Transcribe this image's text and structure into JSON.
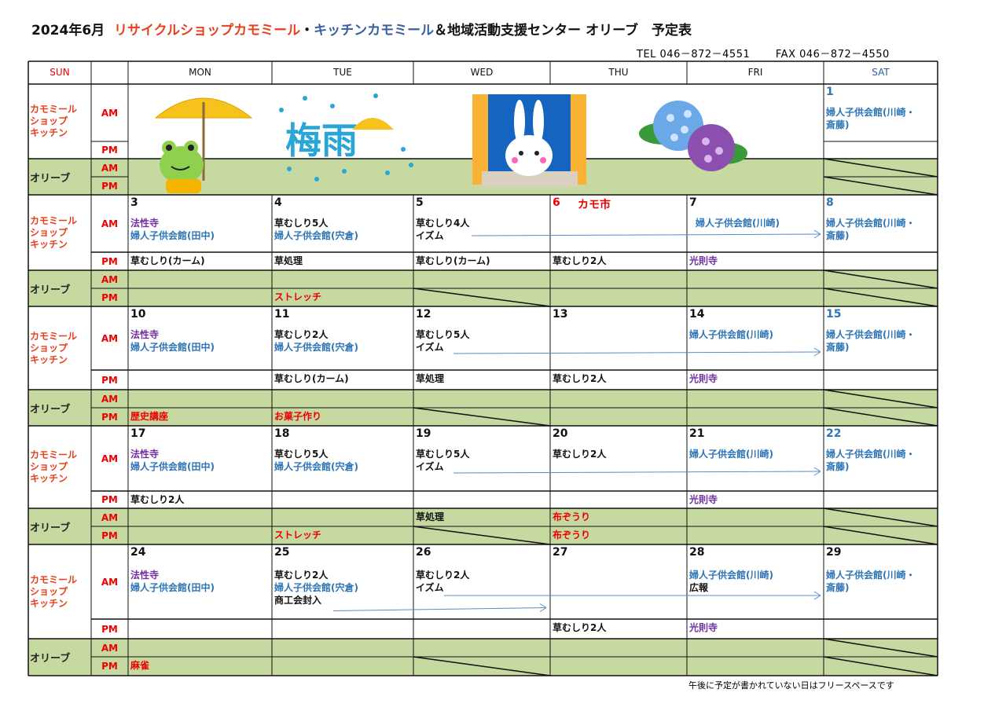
{
  "title": {
    "prefix": "2024年6月",
    "shop1": "リサイクルショップカモミール",
    "dot": "・",
    "shop2": "キッチンカモミール",
    "rest": "＆地域活動支援センター オリーブ　予定表"
  },
  "contact": {
    "tel": "TEL 046－872－4551",
    "fax": "FAX 046－872－4550"
  },
  "header": {
    "days": [
      "SUN",
      "MON",
      "TUE",
      "WED",
      "THU",
      "FRI",
      "SAT"
    ]
  },
  "row_labels": {
    "kamomile": "カモミール\nショップ\nキッチン",
    "olive": "オリーブ",
    "am": "AM",
    "pm": "PM"
  },
  "colors": {
    "black": "#111111",
    "blue": "#2e75b6",
    "purple": "#7030a0",
    "red": "#ee0000",
    "olive_bg": "#c6d9a0",
    "title_orange": "#e8401c",
    "title_blue": "#3a5f9e"
  },
  "illustrations": {
    "frog_umbrella": "frog-umbrella-icon",
    "tsuyu_text": "梅雨",
    "rabbit_window": "rabbit-icon",
    "hydrangea": "hydrangea-icon"
  },
  "weeks": [
    {
      "illustration": true,
      "days": [
        null,
        null,
        null,
        null,
        null,
        {
          "date": "1",
          "date_color": "blue",
          "am": [
            {
              "t": "婦人子供会館(川崎・",
              "c": "blue"
            },
            {
              "t": "斎藤)",
              "c": "blue"
            }
          ],
          "pm": [],
          "olive_am_closed": true,
          "olive_pm_closed": true
        }
      ]
    },
    {
      "arrows": [
        {
          "from_day": "WED",
          "to_day": "SAT"
        }
      ],
      "days": [
        {
          "date": "3",
          "date_color": "black",
          "am": [
            {
              "t": "法性寺",
              "c": "purple"
            },
            {
              "t": "婦人子供会館(田中)",
              "c": "blue"
            }
          ],
          "pm": [
            {
              "t": "草むしり(カーム)",
              "c": "black"
            }
          ]
        },
        {
          "date": "4",
          "date_color": "black",
          "am": [
            {
              "t": "草むしり5人",
              "c": "black"
            },
            {
              "t": "婦人子供会館(宍倉)",
              "c": "blue"
            }
          ],
          "pm": [
            {
              "t": "草処理",
              "c": "black"
            }
          ],
          "olive_pm": {
            "t": "ストレッチ",
            "c": "red"
          }
        },
        {
          "date": "5",
          "date_color": "black",
          "am": [
            {
              "t": "草むしり4人",
              "c": "black"
            },
            {
              "t": "イズム",
              "c": "black"
            }
          ],
          "pm": [
            {
              "t": "草むしり(カーム)",
              "c": "black"
            }
          ],
          "olive_pm_closed": true
        },
        {
          "date": "6",
          "date_color": "red",
          "event": "カモ市",
          "am": [],
          "pm": [
            {
              "t": "草むしり2人",
              "c": "black"
            }
          ]
        },
        {
          "date": "7",
          "date_color": "black",
          "am": [
            {
              "t": " 婦人子供会館(川崎)",
              "c": "blue"
            }
          ],
          "pm": [
            {
              "t": "光則寺",
              "c": "purple"
            }
          ]
        },
        {
          "date": "8",
          "date_color": "blue",
          "am": [
            {
              "t": "婦人子供会館(川崎・",
              "c": "blue"
            },
            {
              "t": "斎藤)",
              "c": "blue"
            }
          ],
          "pm": [],
          "olive_am_closed": true,
          "olive_pm_closed": true
        }
      ]
    },
    {
      "arrows": [
        {
          "from_day": "WED",
          "to_day": "SAT"
        }
      ],
      "days": [
        {
          "date": "10",
          "date_color": "black",
          "am": [
            {
              "t": "法性寺",
              "c": "purple"
            },
            {
              "t": "婦人子供会館(田中)",
              "c": "blue"
            }
          ],
          "pm": [],
          "olive_pm": {
            "t": "歴史講座",
            "c": "red"
          }
        },
        {
          "date": "11",
          "date_color": "black",
          "am": [
            {
              "t": "草むしり2人",
              "c": "black"
            },
            {
              "t": "婦人子供会館(宍倉)",
              "c": "blue"
            }
          ],
          "pm": [
            {
              "t": "草むしり(カーム)",
              "c": "black"
            }
          ],
          "olive_pm": {
            "t": "お菓子作り",
            "c": "red"
          }
        },
        {
          "date": "12",
          "date_color": "black",
          "am": [
            {
              "t": "草むしり5人",
              "c": "black"
            },
            {
              "t": "イズム",
              "c": "black"
            }
          ],
          "pm": [
            {
              "t": "草処理",
              "c": "black"
            }
          ],
          "olive_pm_closed": true
        },
        {
          "date": "13",
          "date_color": "black",
          "am": [],
          "pm": [
            {
              "t": "草むしり2人",
              "c": "black"
            }
          ]
        },
        {
          "date": "14",
          "date_color": "black",
          "am": [
            {
              "t": "婦人子供会館(川崎)",
              "c": "blue"
            }
          ],
          "pm": [
            {
              "t": "光則寺",
              "c": "purple"
            }
          ]
        },
        {
          "date": "15",
          "date_color": "blue",
          "am": [
            {
              "t": "婦人子供会館(川崎・",
              "c": "blue"
            },
            {
              "t": "斎藤)",
              "c": "blue"
            }
          ],
          "pm": [],
          "olive_am_closed": true,
          "olive_pm_closed": true
        }
      ]
    },
    {
      "arrows": [
        {
          "from_day": "WED",
          "to_day": "SAT"
        }
      ],
      "days": [
        {
          "date": "17",
          "date_color": "black",
          "am": [
            {
              "t": "法性寺",
              "c": "purple"
            },
            {
              "t": "婦人子供会館(田中)",
              "c": "blue"
            }
          ],
          "pm": [
            {
              "t": "草むしり2人",
              "c": "black"
            }
          ]
        },
        {
          "date": "18",
          "date_color": "black",
          "am": [
            {
              "t": "草むしり5人",
              "c": "black"
            },
            {
              "t": "婦人子供会館(宍倉)",
              "c": "blue"
            }
          ],
          "pm": [],
          "olive_pm": {
            "t": "ストレッチ",
            "c": "red"
          }
        },
        {
          "date": "19",
          "date_color": "black",
          "am": [
            {
              "t": "草むしり5人",
              "c": "black"
            },
            {
              "t": "イズム",
              "c": "black"
            }
          ],
          "pm": [],
          "olive_am": {
            "t": "草処理",
            "c": "black"
          },
          "olive_pm_closed": true
        },
        {
          "date": "20",
          "date_color": "black",
          "am": [
            {
              "t": "草むしり2人",
              "c": "black"
            }
          ],
          "pm": [],
          "olive_am": {
            "t": "布ぞうり",
            "c": "red"
          },
          "olive_pm": {
            "t": "布ぞうり",
            "c": "red"
          }
        },
        {
          "date": "21",
          "date_color": "black",
          "am": [
            {
              "t": "婦人子供会館(川崎)",
              "c": "blue"
            }
          ],
          "pm": [
            {
              "t": "光則寺",
              "c": "purple"
            }
          ]
        },
        {
          "date": "22",
          "date_color": "blue",
          "am": [
            {
              "t": "婦人子供会館(川崎・",
              "c": "blue"
            },
            {
              "t": "斎藤)",
              "c": "blue"
            }
          ],
          "pm": [],
          "olive_am_closed": true,
          "olive_pm_closed": true
        }
      ]
    },
    {
      "arrows": [
        {
          "from_day": "WED",
          "to_day": "SAT"
        },
        {
          "from_day": "TUE",
          "to_day": "WED"
        }
      ],
      "days": [
        {
          "date": "24",
          "date_color": "black",
          "am": [
            {
              "t": "法性寺",
              "c": "purple"
            },
            {
              "t": "婦人子供会館(田中)",
              "c": "blue"
            }
          ],
          "pm": [],
          "olive_pm": {
            "t": "麻雀",
            "c": "red"
          }
        },
        {
          "date": "25",
          "date_color": "black",
          "am": [
            {
              "t": "草むしり2人",
              "c": "black"
            },
            {
              "t": "婦人子供会館(宍倉)",
              "c": "blue"
            },
            {
              "t": "商工会封入",
              "c": "black"
            }
          ],
          "pm": []
        },
        {
          "date": "26",
          "date_color": "black",
          "am": [
            {
              "t": "草むしり2人",
              "c": "black"
            },
            {
              "t": "イズム",
              "c": "black"
            }
          ],
          "pm": [],
          "olive_pm_closed": true
        },
        {
          "date": "27",
          "date_color": "black",
          "am": [],
          "pm": [
            {
              "t": "草むしり2人",
              "c": "black"
            }
          ]
        },
        {
          "date": "28",
          "date_color": "black",
          "am": [
            {
              "t": "婦人子供会館(川崎)",
              "c": "blue"
            },
            {
              "t": "広報",
              "c": "black"
            }
          ],
          "pm": [
            {
              "t": "光則寺",
              "c": "purple"
            }
          ]
        },
        {
          "date": "29",
          "date_color": "black",
          "am": [
            {
              "t": "婦人子供会館(川崎・",
              "c": "blue"
            },
            {
              "t": "斎藤)",
              "c": "blue"
            }
          ],
          "pm": [],
          "olive_am_closed": true,
          "olive_pm_closed": true
        }
      ]
    }
  ],
  "footnote": "午後に予定が書かれていない日はフリースペースです"
}
